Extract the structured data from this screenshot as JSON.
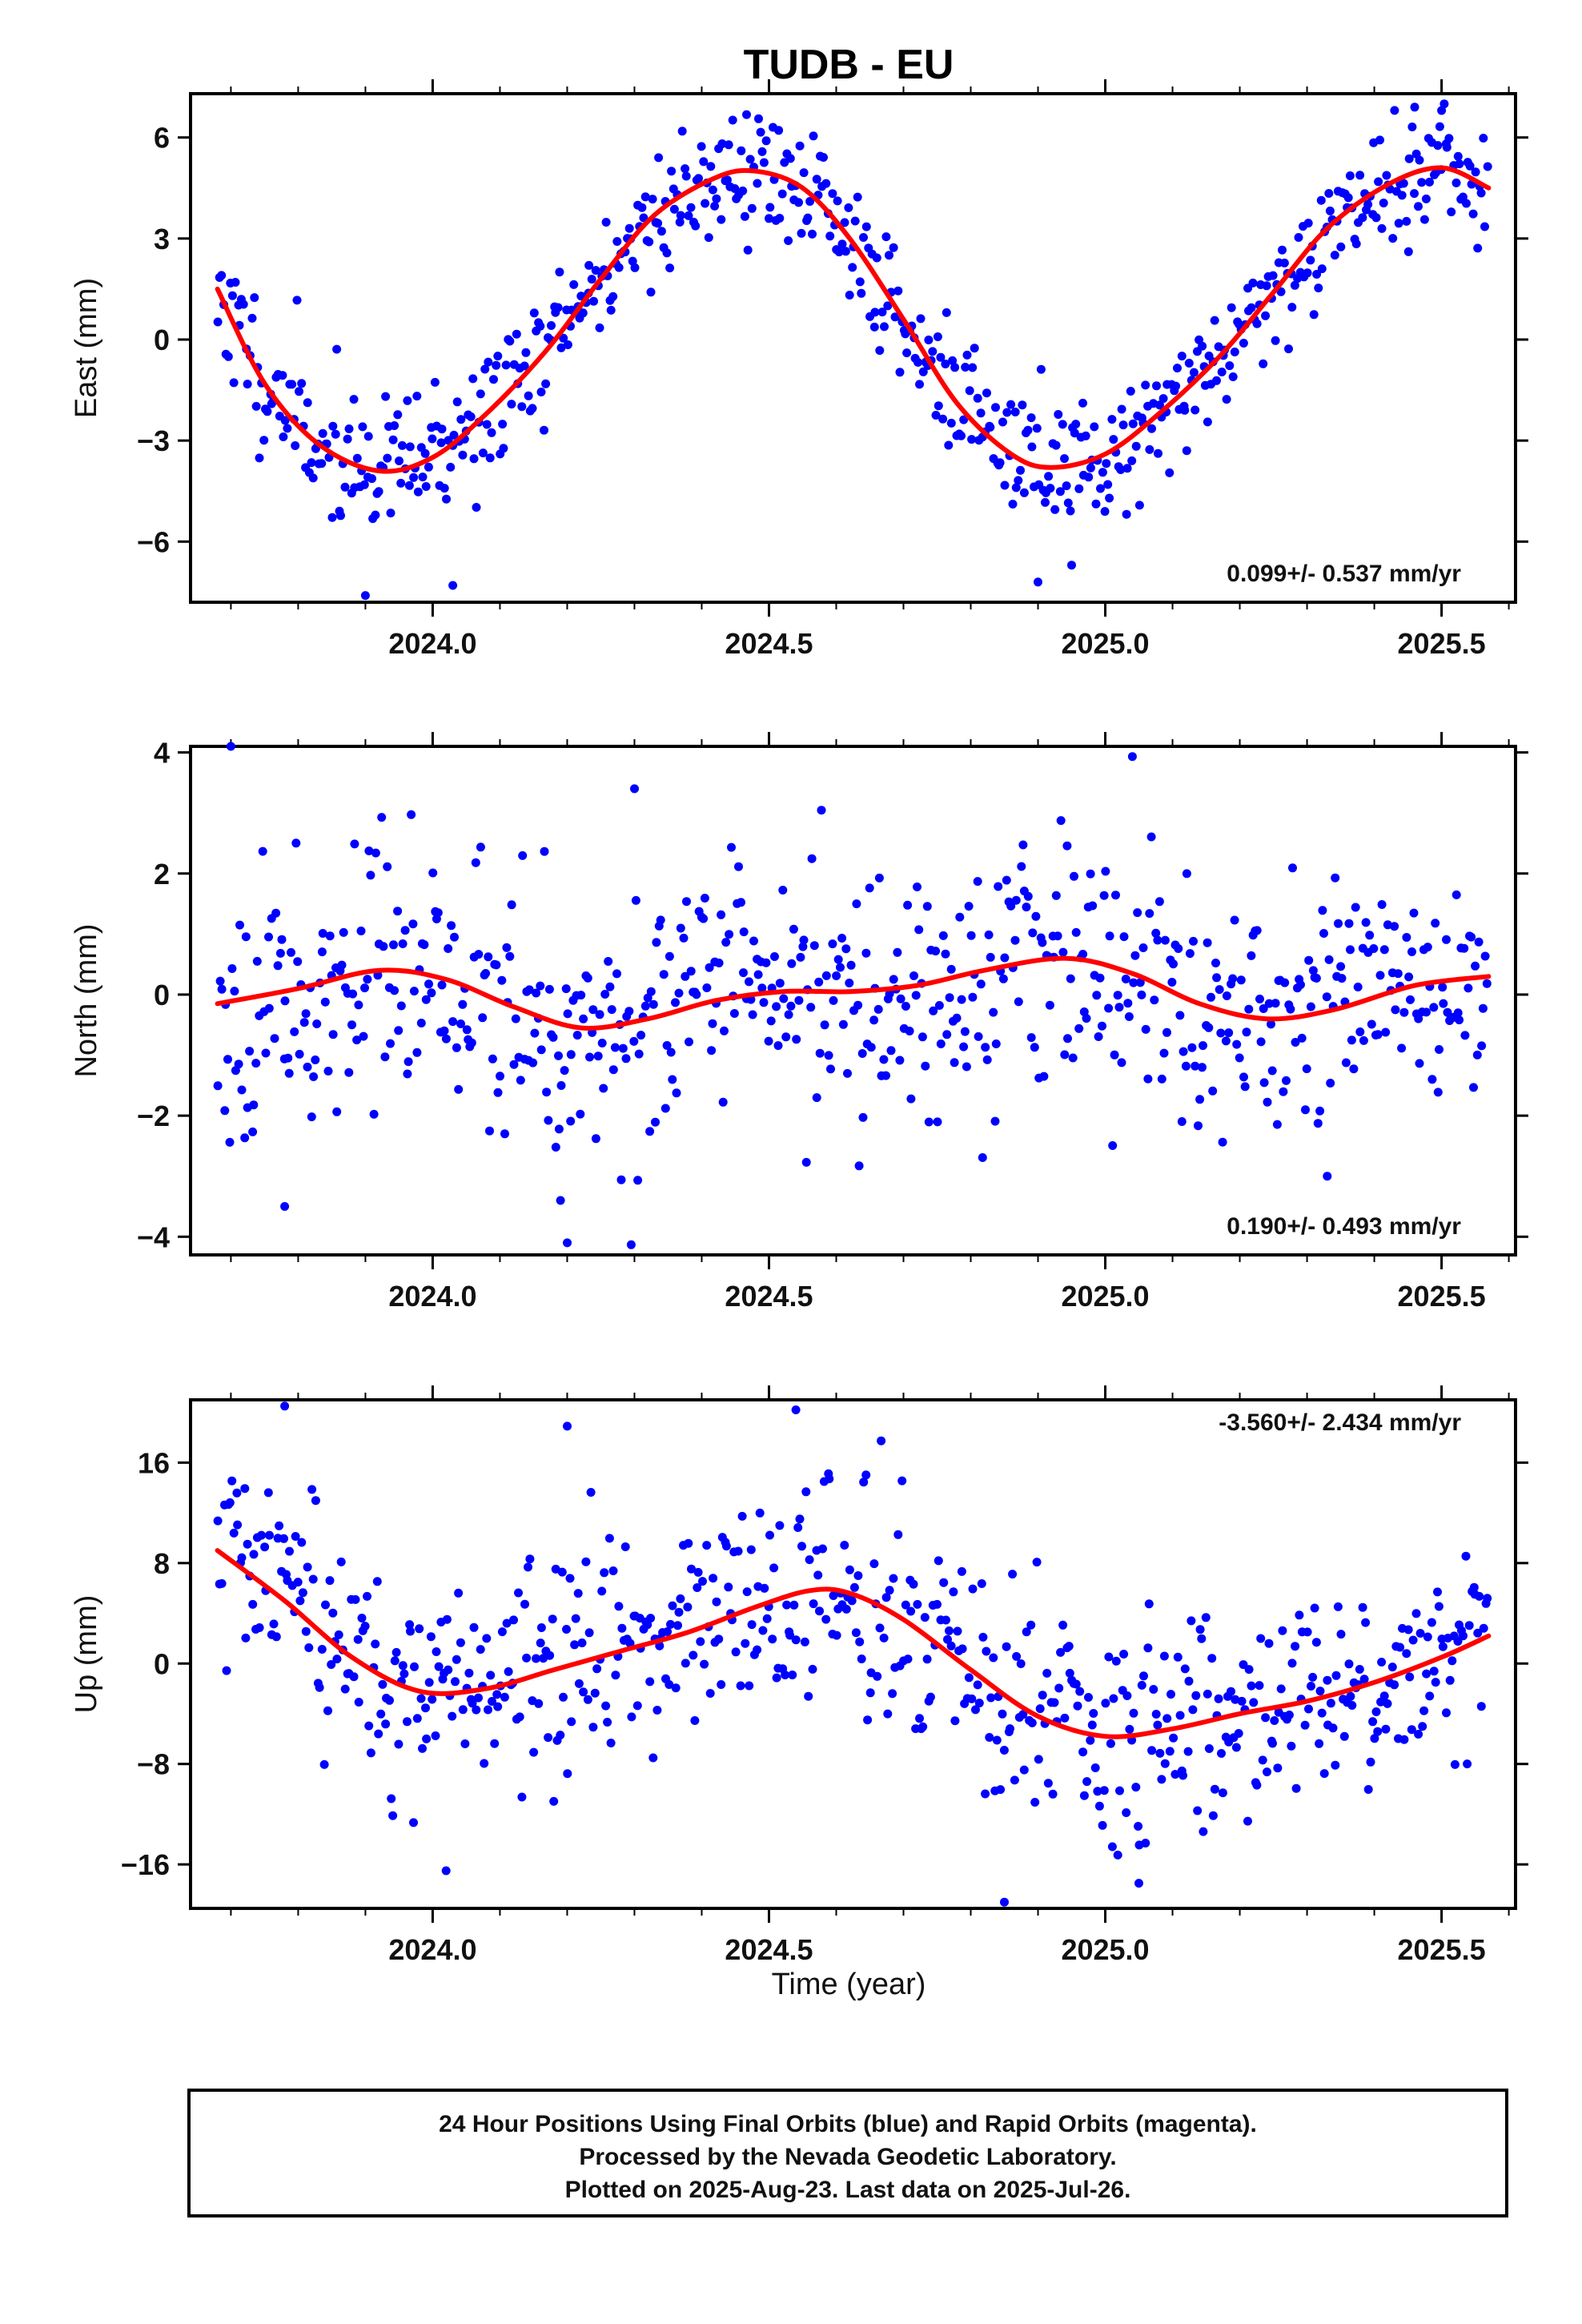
{
  "title": "TUDB - EU",
  "xlabel": "Time (year)",
  "footer": {
    "line1": "24 Hour Positions Using Final Orbits (blue) and Rapid Orbits (magenta).",
    "line2": "Processed by the Nevada Geodetic Laboratory.",
    "line3": "Plotted on 2025-Aug-23. Last data on 2025-Jul-26."
  },
  "colors": {
    "points": "#0000ff",
    "fit": "#ff0000"
  },
  "chart_data": [
    {
      "type": "scatter",
      "ylabel": "East (mm)",
      "rate_label": "0.099+/- 0.537 mm/yr",
      "xlim": [
        2023.64,
        2025.61
      ],
      "ylim": [
        -7.8,
        7.3
      ],
      "xticks": [
        2024.0,
        2024.5,
        2025.0,
        2025.5
      ],
      "xtick_labels": [
        "2024.0",
        "2024.5",
        "2025.0",
        "2025.5"
      ],
      "yticks": [
        -6,
        -3,
        0,
        3,
        6
      ],
      "ytick_labels": [
        "−6",
        "−3",
        "0",
        "3",
        "6"
      ],
      "fit": {
        "x": [
          2023.68,
          2023.75,
          2023.83,
          2023.92,
          2024.0,
          2024.08,
          2024.17,
          2024.25,
          2024.33,
          2024.42,
          2024.48,
          2024.55,
          2024.62,
          2024.7,
          2024.78,
          2024.86,
          2024.92,
          2025.0,
          2025.08,
          2025.17,
          2025.25,
          2025.33,
          2025.42,
          2025.5,
          2025.57
        ],
        "y": [
          1.5,
          -1.3,
          -3.1,
          -3.9,
          -3.5,
          -2.2,
          -0.3,
          1.8,
          3.7,
          4.8,
          5.0,
          4.5,
          3.0,
          0.6,
          -1.9,
          -3.4,
          -3.8,
          -3.4,
          -2.2,
          -0.5,
          1.4,
          3.3,
          4.6,
          5.1,
          4.5
        ]
      },
      "points": {
        "count": 640,
        "seed": 11,
        "noise": 1.0,
        "outliers": [
          [
            2023.9,
            -7.6
          ],
          [
            2024.03,
            -7.3
          ],
          [
            2024.9,
            -7.2
          ],
          [
            2024.95,
            -6.7
          ],
          [
            2025.46,
            6.9
          ],
          [
            2025.5,
            6.8
          ]
        ]
      }
    },
    {
      "type": "scatter",
      "ylabel": "North (mm)",
      "rate_label": "0.190+/- 0.493 mm/yr",
      "xlim": [
        2023.64,
        2025.61
      ],
      "ylim": [
        -4.3,
        4.1
      ],
      "xticks": [
        2024.0,
        2024.5,
        2025.0,
        2025.5
      ],
      "xtick_labels": [
        "2024.0",
        "2024.5",
        "2025.0",
        "2025.5"
      ],
      "yticks": [
        -4,
        -2,
        0,
        2,
        4
      ],
      "ytick_labels": [
        "−4",
        "−2",
        "0",
        "2",
        "4"
      ],
      "fit": {
        "x": [
          2023.68,
          2023.8,
          2023.92,
          2024.02,
          2024.12,
          2024.22,
          2024.32,
          2024.42,
          2024.52,
          2024.62,
          2024.72,
          2024.82,
          2024.94,
          2025.04,
          2025.14,
          2025.24,
          2025.34,
          2025.46,
          2025.57
        ],
        "y": [
          -0.15,
          0.1,
          0.4,
          0.25,
          -0.2,
          -0.55,
          -0.4,
          -0.1,
          0.05,
          0.05,
          0.15,
          0.4,
          0.6,
          0.35,
          -0.15,
          -0.4,
          -0.25,
          0.15,
          0.3
        ]
      },
      "points": {
        "count": 640,
        "seed": 23,
        "noise": 1.05,
        "outliers": [
          [
            2023.7,
            4.1
          ],
          [
            2024.2,
            -4.1
          ],
          [
            2024.19,
            -3.4
          ],
          [
            2023.78,
            -3.5
          ],
          [
            2024.3,
            3.4
          ],
          [
            2025.33,
            -3.0
          ]
        ]
      }
    },
    {
      "type": "scatter",
      "ylabel": "Up (mm)",
      "rate_label": "-3.560+/- 2.434 mm/yr",
      "xlim": [
        2023.64,
        2025.61
      ],
      "ylim": [
        -19.5,
        21.0
      ],
      "xticks": [
        2024.0,
        2024.5,
        2025.0,
        2025.5
      ],
      "xtick_labels": [
        "2024.0",
        "2024.5",
        "2025.0",
        "2025.5"
      ],
      "yticks": [
        -16,
        -8,
        0,
        8,
        16
      ],
      "ytick_labels": [
        "−16",
        "−8",
        "0",
        "8",
        "16"
      ],
      "fit": {
        "x": [
          2023.68,
          2023.78,
          2023.88,
          2023.98,
          2024.08,
          2024.18,
          2024.28,
          2024.38,
          2024.48,
          2024.56,
          2024.62,
          2024.7,
          2024.8,
          2024.9,
          2025.0,
          2025.1,
          2025.2,
          2025.3,
          2025.4,
          2025.5,
          2025.57
        ],
        "y": [
          9.0,
          5.0,
          0.5,
          -2.2,
          -2.0,
          -0.5,
          1.0,
          2.5,
          4.5,
          5.8,
          5.6,
          3.5,
          -0.5,
          -4.2,
          -5.8,
          -5.2,
          -4.0,
          -3.0,
          -1.5,
          0.5,
          2.2
        ]
      },
      "points": {
        "count": 640,
        "seed": 37,
        "noise": 4.4,
        "outliers": [
          [
            2023.78,
            20.5
          ],
          [
            2024.54,
            20.2
          ],
          [
            2024.85,
            -19.0
          ],
          [
            2024.02,
            -16.5
          ],
          [
            2025.05,
            -17.5
          ],
          [
            2024.2,
            18.9
          ]
        ]
      }
    }
  ]
}
